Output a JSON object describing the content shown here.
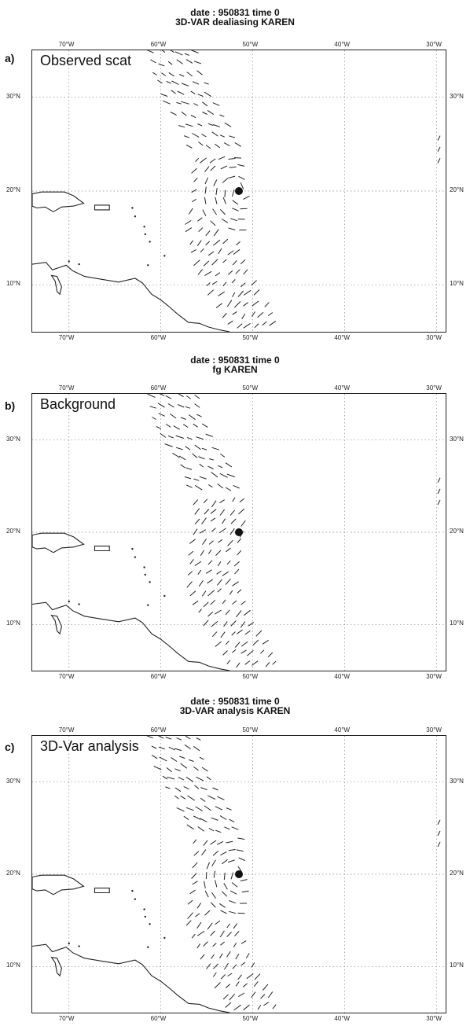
{
  "panels": [
    {
      "id": "a",
      "title_line1": "date :  950831 time  0",
      "title_line2": "3D-VAR dealiasing KAREN",
      "panel_letter": "a)",
      "map_label": "Observed scat",
      "storm_center": {
        "lon": -51.5,
        "lat": 20.0
      }
    },
    {
      "id": "b",
      "title_line1": "date :  950831 time  0",
      "title_line2": "fg KAREN",
      "panel_letter": "b)",
      "map_label": "Background",
      "storm_center": {
        "lon": -51.5,
        "lat": 20.0
      }
    },
    {
      "id": "c",
      "title_line1": "date :  950831 time  0",
      "title_line2": "3D-VAR analysis KAREN",
      "panel_letter": "c)",
      "map_label": "3D-Var analysis",
      "storm_center": {
        "lon": -51.5,
        "lat": 20.0
      }
    }
  ],
  "map_extent": {
    "lon_min": -74,
    "lon_max": -29,
    "lat_min": 5,
    "lat_max": 35
  },
  "lon_ticks": [
    {
      "value": -70,
      "label": "70°W"
    },
    {
      "value": -60,
      "label": "60°W"
    },
    {
      "value": -50,
      "label": "50°W"
    },
    {
      "value": -40,
      "label": "40°W"
    },
    {
      "value": -30,
      "label": "30°W"
    }
  ],
  "lat_ticks": [
    {
      "value": 30,
      "label": "30°N"
    },
    {
      "value": 20,
      "label": "20°N"
    },
    {
      "value": 10,
      "label": "10°N"
    }
  ]
}
